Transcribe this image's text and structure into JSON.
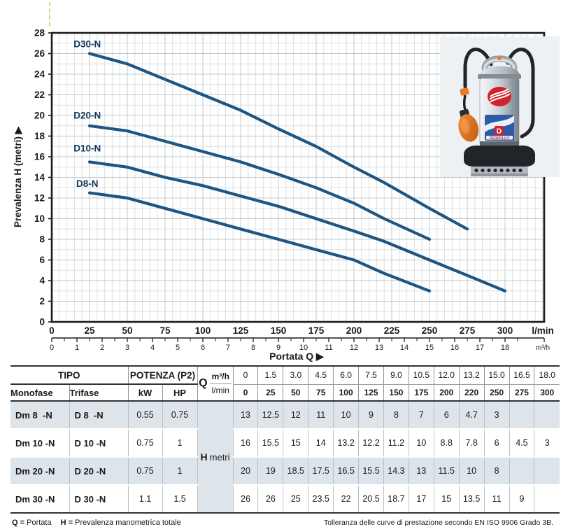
{
  "chart_data": {
    "type": "line",
    "title": "",
    "x_axis": {
      "label": "Portata Q ▶",
      "unit_primary": "l/min",
      "unit_secondary": "m³/h",
      "ticks_lmin": [
        0,
        25,
        50,
        75,
        100,
        125,
        150,
        175,
        200,
        225,
        250,
        275,
        300
      ],
      "ticks_m3h": [
        0,
        1,
        2,
        3,
        4,
        5,
        6,
        7,
        8,
        9,
        10,
        11,
        12,
        13,
        14,
        15,
        16,
        17,
        18
      ],
      "range_lmin": [
        0,
        325
      ]
    },
    "y_axis": {
      "label": "Prevalenza H (metri) ▶",
      "ticks": [
        0,
        2,
        4,
        6,
        8,
        10,
        12,
        14,
        16,
        18,
        20,
        22,
        24,
        26,
        28
      ],
      "range": [
        0,
        28
      ],
      "grid_minor_step": 1,
      "grid_major_step": 2
    },
    "grid": true,
    "legend_position": "inline-labels",
    "curve_color": "#1d5583",
    "label_color": "#14375c",
    "series": [
      {
        "name": "D30-N",
        "label_at": [
          23.5,
          26.6
        ],
        "points": [
          [
            25,
            26
          ],
          [
            50,
            25
          ],
          [
            75,
            23.5
          ],
          [
            100,
            22
          ],
          [
            125,
            20.5
          ],
          [
            150,
            18.7
          ],
          [
            175,
            17
          ],
          [
            200,
            15
          ],
          [
            220,
            13.5
          ],
          [
            250,
            11
          ],
          [
            275,
            9
          ]
        ]
      },
      {
        "name": "D20-N",
        "label_at": [
          23.5,
          19.7
        ],
        "points": [
          [
            25,
            19
          ],
          [
            50,
            18.5
          ],
          [
            75,
            17.5
          ],
          [
            100,
            16.5
          ],
          [
            125,
            15.5
          ],
          [
            150,
            14.3
          ],
          [
            175,
            13
          ],
          [
            200,
            11.5
          ],
          [
            220,
            10
          ],
          [
            250,
            8
          ]
        ]
      },
      {
        "name": "D10-N",
        "label_at": [
          23.5,
          16.5
        ],
        "points": [
          [
            25,
            15.5
          ],
          [
            50,
            15
          ],
          [
            75,
            14
          ],
          [
            100,
            13.2
          ],
          [
            125,
            12.2
          ],
          [
            150,
            11.2
          ],
          [
            175,
            10
          ],
          [
            200,
            8.8
          ],
          [
            220,
            7.8
          ],
          [
            250,
            6
          ],
          [
            275,
            4.5
          ],
          [
            300,
            3
          ]
        ]
      },
      {
        "name": "D8-N",
        "label_at": [
          23.5,
          13.1
        ],
        "points": [
          [
            25,
            12.5
          ],
          [
            50,
            12
          ],
          [
            75,
            11
          ],
          [
            100,
            10
          ],
          [
            125,
            9
          ],
          [
            150,
            8
          ],
          [
            175,
            7
          ],
          [
            200,
            6
          ],
          [
            220,
            4.7
          ],
          [
            250,
            3
          ]
        ]
      }
    ]
  },
  "pump_photo": {
    "name": "pedrollo-d-n-submersible-pump",
    "brand_letter": "D",
    "brand_text": "PEDROLLO"
  },
  "table": {
    "header": {
      "tipo": "TIPO",
      "monofase": "Monofase",
      "trifase": "Trifase",
      "potenza": "POTENZA (P2)",
      "kw": "kW",
      "hp": "HP",
      "q": "Q",
      "m3h": "m³/h",
      "lmin": "l/min",
      "h_label": "H",
      "h_unit": "metri",
      "m3h_values": [
        "0",
        "1.5",
        "3.0",
        "4.5",
        "6.0",
        "7.5",
        "9.0",
        "10.5",
        "12.0",
        "13.2",
        "15.0",
        "16.5",
        "18.0"
      ],
      "lmin_values": [
        "0",
        "25",
        "50",
        "75",
        "100",
        "125",
        "150",
        "175",
        "200",
        "220",
        "250",
        "275",
        "300"
      ]
    },
    "rows": [
      {
        "monofase": "Dm 8  -N",
        "trifase": "D 8  -N",
        "kw": "0.55",
        "hp": "0.75",
        "h": [
          "13",
          "12.5",
          "12",
          "11",
          "10",
          "9",
          "8",
          "7",
          "6",
          "4.7",
          "3",
          "",
          ""
        ]
      },
      {
        "monofase": "Dm 10 -N",
        "trifase": "D 10 -N",
        "kw": "0.75",
        "hp": "1",
        "h": [
          "16",
          "15.5",
          "15",
          "14",
          "13.2",
          "12.2",
          "11.2",
          "10",
          "8.8",
          "7.8",
          "6",
          "4.5",
          "3"
        ]
      },
      {
        "monofase": "Dm 20 -N",
        "trifase": "D 20 -N",
        "kw": "0.75",
        "hp": "1",
        "h": [
          "20",
          "19",
          "18.5",
          "17.5",
          "16.5",
          "15.5",
          "14.3",
          "13",
          "11.5",
          "10",
          "8",
          "",
          ""
        ]
      },
      {
        "monofase": "Dm 30 -N",
        "trifase": "D 30 -N",
        "kw": "1.1",
        "hp": "1.5",
        "h": [
          "26",
          "26",
          "25",
          "23.5",
          "22",
          "20.5",
          "18.7",
          "17",
          "15",
          "13.5",
          "11",
          "9",
          ""
        ]
      }
    ]
  },
  "footer": {
    "legend": [
      {
        "term": "Q =",
        "def": "Portata"
      },
      {
        "term": "H =",
        "def": "Prevalenza manometrica totale"
      }
    ],
    "right": "Tolleranza delle curve di prestazione secondo EN ISO 9906 Grado 3B."
  }
}
